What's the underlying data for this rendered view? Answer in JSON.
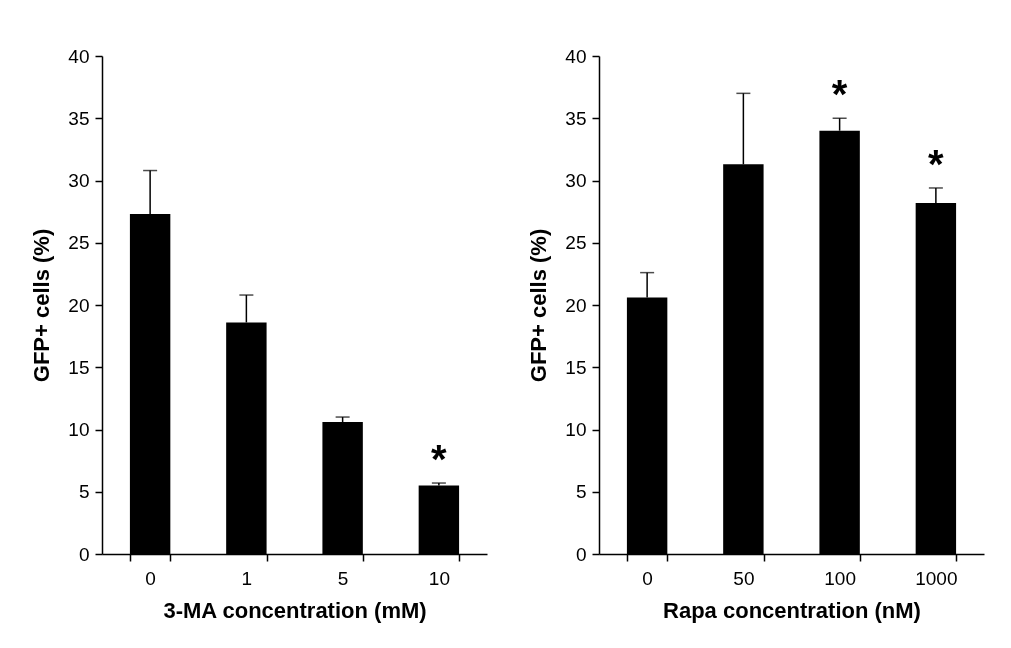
{
  "chart_data": [
    {
      "type": "bar",
      "xlabel": "3-MA concentration (mM)",
      "ylabel": "GFP+ cells (%)",
      "categories": [
        "0",
        "1",
        "5",
        "10"
      ],
      "values": [
        27.3,
        18.6,
        10.6,
        5.5
      ],
      "color": "#000000",
      "errors": [
        [
          27.3,
          30.8
        ],
        [
          18.6,
          20.8
        ],
        [
          10.6,
          11.0
        ],
        [
          5.5,
          5.7
        ]
      ],
      "ylim": [
        0,
        40
      ],
      "yticks": [
        0,
        5,
        10,
        15,
        20,
        25,
        30,
        35,
        40
      ],
      "grid": false,
      "annotations": [
        {
          "text": "*",
          "x": "10",
          "y": 5.7
        }
      ]
    },
    {
      "type": "bar",
      "xlabel": "Rapa concentration (nM)",
      "ylabel": "GFP+ cells (%)",
      "categories": [
        "0",
        "50",
        "100",
        "1000"
      ],
      "values": [
        20.6,
        31.3,
        34.0,
        28.2
      ],
      "color": "#000000",
      "errors": [
        [
          20.6,
          22.6
        ],
        [
          31.3,
          37.0
        ],
        [
          34.0,
          35.0
        ],
        [
          28.2,
          29.4
        ]
      ],
      "ylim": [
        0,
        40
      ],
      "yticks": [
        0,
        5,
        10,
        15,
        20,
        25,
        30,
        35,
        40
      ],
      "grid": false,
      "annotations": [
        {
          "text": "*",
          "x": "100",
          "y": 35.0
        },
        {
          "text": "*",
          "x": "1000",
          "y": 29.4
        }
      ]
    }
  ]
}
